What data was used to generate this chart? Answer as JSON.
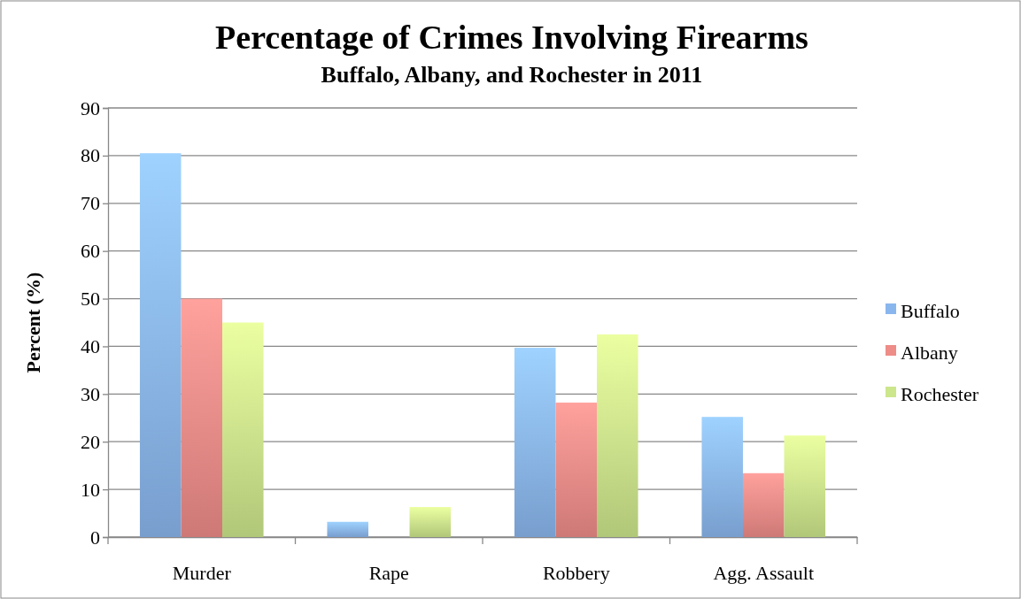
{
  "chart_data": {
    "type": "bar",
    "title": "Percentage of Crimes Involving Firearms",
    "subtitle": "Buffalo, Albany, and Rochester in 2011",
    "ylabel": "Percent (%)",
    "categories": [
      "Murder",
      "Rape",
      "Robbery",
      "Agg. Assault"
    ],
    "series": [
      {
        "name": "Buffalo",
        "color": "#8ab6ee",
        "values": [
          80.5,
          3.2,
          39.7,
          25.2
        ]
      },
      {
        "name": "Albany",
        "color": "#ee8c88",
        "values": [
          50,
          0,
          28.2,
          13.4
        ]
      },
      {
        "name": "Rochester",
        "color": "#cce68c",
        "values": [
          45,
          6.3,
          42.5,
          21.3
        ]
      }
    ],
    "ylim": [
      0,
      90
    ],
    "yticks": [
      0,
      10,
      20,
      30,
      40,
      50,
      60,
      70,
      80,
      90
    ],
    "grid": "y",
    "legend": "right"
  }
}
